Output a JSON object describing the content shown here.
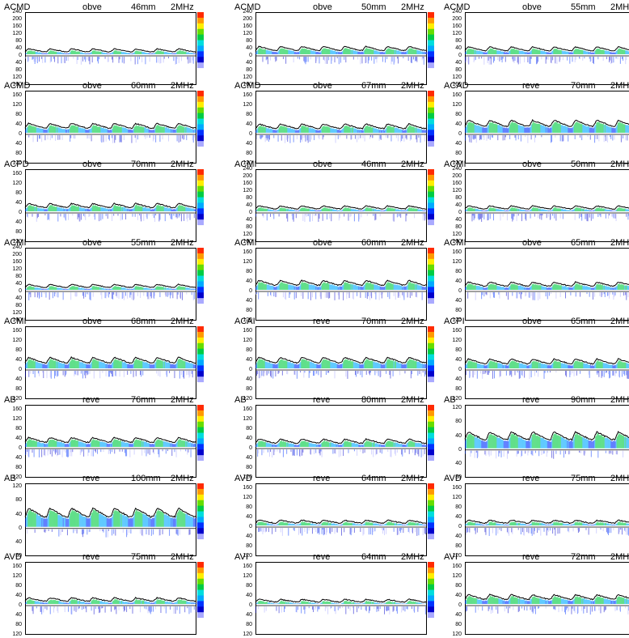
{
  "chart_data": {
    "type": "area",
    "description_freq": "2MHz",
    "panels": [
      {
        "vessel": "ACMD",
        "mode": "obve",
        "depth": "46mm",
        "freq": "2MHz",
        "ticks_up": [
          240,
          200,
          160,
          120,
          80,
          40
        ],
        "ticks_down": [
          40,
          80,
          120,
          160
        ],
        "zero": "0",
        "mean": 30,
        "ylim": [
          -160,
          240
        ]
      },
      {
        "vessel": "ACMD",
        "mode": "obve",
        "depth": "50mm",
        "freq": "2MHz",
        "ticks_up": [
          240,
          200,
          160,
          120,
          80,
          40
        ],
        "ticks_down": [
          40,
          80,
          120,
          160
        ],
        "zero": "0",
        "mean": 40,
        "ylim": [
          -160,
          240
        ]
      },
      {
        "vessel": "ACMD",
        "mode": "obve",
        "depth": "55mm",
        "freq": "2MHz",
        "ticks_up": [
          240,
          200,
          160,
          120,
          80,
          40
        ],
        "ticks_down": [
          40,
          80,
          120,
          160
        ],
        "zero": "0",
        "mean": 38,
        "ylim": [
          -160,
          240
        ]
      },
      {
        "vessel": "ACMD",
        "mode": "obve",
        "depth": "60mm",
        "freq": "2MHz",
        "ticks_up": [
          160,
          120,
          80,
          40
        ],
        "ticks_down": [
          40,
          80,
          120
        ],
        "zero": "0",
        "mean": 35,
        "ylim": [
          -120,
          180
        ]
      },
      {
        "vessel": "ACMD",
        "mode": "obve",
        "depth": "67mm",
        "freq": "2MHz",
        "ticks_up": [
          160,
          120,
          80,
          40
        ],
        "ticks_down": [
          40,
          80,
          120
        ],
        "zero": "0",
        "mean": 33,
        "ylim": [
          -120,
          180
        ]
      },
      {
        "vessel": "ACAD",
        "mode": "reve",
        "depth": "70mm",
        "freq": "2MHz",
        "ticks_up": [
          160,
          120,
          80,
          40
        ],
        "ticks_down": [
          40,
          80,
          120
        ],
        "zero": "0",
        "mean": 45,
        "ylim": [
          -120,
          180
        ]
      },
      {
        "vessel": "ACPD",
        "mode": "obve",
        "depth": "70mm",
        "freq": "2MHz",
        "ticks_up": [
          160,
          120,
          80,
          40
        ],
        "ticks_down": [
          40,
          80,
          120
        ],
        "zero": "0",
        "mean": 30,
        "ylim": [
          -120,
          180
        ]
      },
      {
        "vessel": "ACMI",
        "mode": "obve",
        "depth": "46mm",
        "freq": "2MHz",
        "ticks_up": [
          240,
          200,
          160,
          120,
          80,
          40
        ],
        "ticks_down": [
          40,
          80,
          120,
          160
        ],
        "zero": "0",
        "mean": 30,
        "ylim": [
          -160,
          240
        ]
      },
      {
        "vessel": "ACMI",
        "mode": "obve",
        "depth": "50mm",
        "freq": "2MHz",
        "ticks_up": [
          240,
          200,
          160,
          120,
          80,
          40
        ],
        "ticks_down": [
          40,
          80,
          120,
          160
        ],
        "zero": "0",
        "mean": 30,
        "ylim": [
          -160,
          240
        ]
      },
      {
        "vessel": "ACMI",
        "mode": "obve",
        "depth": "55mm",
        "freq": "2MHz",
        "ticks_up": [
          240,
          200,
          160,
          120,
          80,
          40
        ],
        "ticks_down": [
          40,
          80,
          120,
          160
        ],
        "zero": "0",
        "mean": 30,
        "ylim": [
          -160,
          240
        ]
      },
      {
        "vessel": "ACMI",
        "mode": "obve",
        "depth": "60mm",
        "freq": "2MHz",
        "ticks_up": [
          160,
          120,
          80,
          40
        ],
        "ticks_down": [
          40,
          80,
          120
        ],
        "zero": "0",
        "mean": 35,
        "ylim": [
          -120,
          180
        ]
      },
      {
        "vessel": "ACMI",
        "mode": "obve",
        "depth": "65mm",
        "freq": "2MHz",
        "ticks_up": [
          160,
          120,
          80,
          40
        ],
        "ticks_down": [
          40,
          80,
          120
        ],
        "zero": "0",
        "mean": 30,
        "ylim": [
          -120,
          180
        ]
      },
      {
        "vessel": "ACMI",
        "mode": "obve",
        "depth": "68mm",
        "freq": "2MHz",
        "ticks_up": [
          160,
          120,
          80,
          40
        ],
        "ticks_down": [
          40,
          80,
          120
        ],
        "zero": "0",
        "mean": 40,
        "ylim": [
          -120,
          180
        ]
      },
      {
        "vessel": "ACAI",
        "mode": "reve",
        "depth": "70mm",
        "freq": "2MHz",
        "ticks_up": [
          160,
          120,
          80,
          40
        ],
        "ticks_down": [
          40,
          80,
          120
        ],
        "zero": "0",
        "mean": 40,
        "ylim": [
          -120,
          180
        ]
      },
      {
        "vessel": "ACPI",
        "mode": "obve",
        "depth": "65mm",
        "freq": "2MHz",
        "ticks_up": [
          160,
          120,
          80,
          40
        ],
        "ticks_down": [
          40,
          80,
          120
        ],
        "zero": "0",
        "mean": 35,
        "ylim": [
          -120,
          180
        ]
      },
      {
        "vessel": "AB",
        "mode": "reve",
        "depth": "76mm",
        "freq": "2MHz",
        "ticks_up": [
          160,
          120,
          80,
          40
        ],
        "ticks_down": [
          40,
          80,
          120
        ],
        "zero": "0",
        "mean": 35,
        "ylim": [
          -120,
          180
        ]
      },
      {
        "vessel": "AB",
        "mode": "reve",
        "depth": "80mm",
        "freq": "2MHz",
        "ticks_up": [
          160,
          120,
          80,
          40
        ],
        "ticks_down": [
          40,
          80,
          120
        ],
        "zero": "0",
        "mean": 30,
        "ylim": [
          -120,
          180
        ]
      },
      {
        "vessel": "AB",
        "mode": "reve",
        "depth": "90mm",
        "freq": "2MHz",
        "ticks_up": [
          120,
          80,
          40
        ],
        "ticks_down": [
          40,
          80
        ],
        "zero": "0",
        "mean": 40,
        "ylim": [
          -80,
          130
        ]
      },
      {
        "vessel": "AB",
        "mode": "reve",
        "depth": "100mm",
        "freq": "2MHz",
        "ticks_up": [
          120,
          80,
          40
        ],
        "ticks_down": [
          40,
          80
        ],
        "zero": "0",
        "mean": 45,
        "ylim": [
          -80,
          130
        ]
      },
      {
        "vessel": "AVD",
        "mode": "reve",
        "depth": "64mm",
        "freq": "2MHz",
        "ticks_up": [
          160,
          120,
          80,
          40
        ],
        "ticks_down": [
          40,
          80,
          120
        ],
        "zero": "0",
        "mean": 22,
        "ylim": [
          -120,
          180
        ]
      },
      {
        "vessel": "AVD",
        "mode": "reve",
        "depth": "75mm",
        "freq": "2MHz",
        "ticks_up": [
          160,
          120,
          80,
          40
        ],
        "ticks_down": [
          40,
          80,
          120
        ],
        "zero": "0",
        "mean": 22,
        "ylim": [
          -120,
          180
        ]
      },
      {
        "vessel": "AVD",
        "mode": "reve",
        "depth": "75mm",
        "freq": "2MHz",
        "ticks_up": [
          160,
          120,
          80,
          40
        ],
        "ticks_down": [
          40,
          80,
          120
        ],
        "zero": "0",
        "mean": 25,
        "ylim": [
          -120,
          180
        ]
      },
      {
        "vessel": "AVI",
        "mode": "reve",
        "depth": "64mm",
        "freq": "2MHz",
        "ticks_up": [
          160,
          120,
          80,
          40
        ],
        "ticks_down": [
          40,
          80,
          120
        ],
        "zero": "0",
        "mean": 20,
        "ylim": [
          -120,
          180
        ]
      },
      {
        "vessel": "AVI",
        "mode": "reve",
        "depth": "72mm",
        "freq": "2MHz",
        "ticks_up": [
          160,
          120,
          80,
          40
        ],
        "ticks_down": [
          40,
          80,
          120
        ],
        "zero": "0",
        "mean": 35,
        "ylim": [
          -120,
          180
        ]
      }
    ]
  },
  "colorbar": [
    "#ff2a00",
    "#ff9900",
    "#ffee00",
    "#66dd00",
    "#00cc44",
    "#00dddd",
    "#00aaff",
    "#0033ff",
    "#0000cc",
    "#aaaaff",
    "#ffffff"
  ]
}
